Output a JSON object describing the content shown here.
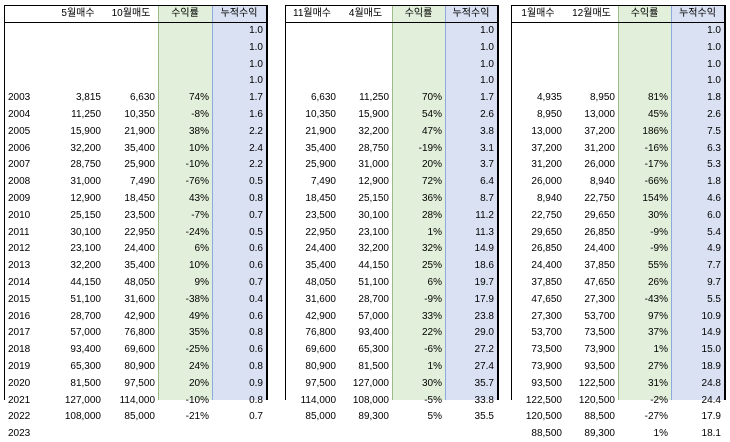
{
  "years": [
    "2003",
    "2004",
    "2005",
    "2006",
    "2007",
    "2008",
    "2009",
    "2010",
    "2011",
    "2012",
    "2013",
    "2014",
    "2015",
    "2016",
    "2017",
    "2018",
    "2019",
    "2020",
    "2021",
    "2022",
    "2023"
  ],
  "tables": [
    {
      "headers": [
        "5월매수",
        "10월매도",
        "수익률",
        "누적수익"
      ],
      "pre_cum": [
        "1.0",
        "1.0",
        "1.0",
        "1.0"
      ],
      "rows": [
        [
          "3,815",
          "6,630",
          "74%",
          "1.7"
        ],
        [
          "11,250",
          "10,350",
          "-8%",
          "1.6"
        ],
        [
          "15,900",
          "21,900",
          "38%",
          "2.2"
        ],
        [
          "32,200",
          "35,400",
          "10%",
          "2.4"
        ],
        [
          "28,750",
          "25,900",
          "-10%",
          "2.2"
        ],
        [
          "31,000",
          "7,490",
          "-76%",
          "0.5"
        ],
        [
          "12,900",
          "18,450",
          "43%",
          "0.8"
        ],
        [
          "25,150",
          "23,500",
          "-7%",
          "0.7"
        ],
        [
          "30,100",
          "22,950",
          "-24%",
          "0.5"
        ],
        [
          "23,100",
          "24,400",
          "6%",
          "0.6"
        ],
        [
          "32,200",
          "35,400",
          "10%",
          "0.6"
        ],
        [
          "44,150",
          "48,050",
          "9%",
          "0.7"
        ],
        [
          "51,100",
          "31,600",
          "-38%",
          "0.4"
        ],
        [
          "28,700",
          "42,900",
          "49%",
          "0.6"
        ],
        [
          "57,000",
          "76,800",
          "35%",
          "0.8"
        ],
        [
          "93,400",
          "69,600",
          "-25%",
          "0.6"
        ],
        [
          "65,300",
          "80,900",
          "24%",
          "0.8"
        ],
        [
          "81,500",
          "97,500",
          "20%",
          "0.9"
        ],
        [
          "127,000",
          "114,000",
          "-10%",
          "0.8"
        ],
        [
          "108,000",
          "85,000",
          "-21%",
          "0.7"
        ],
        [
          "",
          "",
          "",
          ""
        ]
      ]
    },
    {
      "headers": [
        "11월매수",
        "4월매도",
        "수익률",
        "누적수익"
      ],
      "pre_cum": [
        "1.0",
        "1.0",
        "1.0",
        "1.0"
      ],
      "rows": [
        [
          "6,630",
          "11,250",
          "70%",
          "1.7"
        ],
        [
          "10,350",
          "15,900",
          "54%",
          "2.6"
        ],
        [
          "21,900",
          "32,200",
          "47%",
          "3.8"
        ],
        [
          "35,400",
          "28,750",
          "-19%",
          "3.1"
        ],
        [
          "25,900",
          "31,000",
          "20%",
          "3.7"
        ],
        [
          "7,490",
          "12,900",
          "72%",
          "6.4"
        ],
        [
          "18,450",
          "25,150",
          "36%",
          "8.7"
        ],
        [
          "23,500",
          "30,100",
          "28%",
          "11.2"
        ],
        [
          "22,950",
          "23,100",
          "1%",
          "11.3"
        ],
        [
          "24,400",
          "32,200",
          "32%",
          "14.9"
        ],
        [
          "35,400",
          "44,150",
          "25%",
          "18.6"
        ],
        [
          "48,050",
          "51,100",
          "6%",
          "19.7"
        ],
        [
          "31,600",
          "28,700",
          "-9%",
          "17.9"
        ],
        [
          "42,900",
          "57,000",
          "33%",
          "23.8"
        ],
        [
          "76,800",
          "93,400",
          "22%",
          "29.0"
        ],
        [
          "69,600",
          "65,300",
          "-6%",
          "27.2"
        ],
        [
          "80,900",
          "81,500",
          "1%",
          "27.4"
        ],
        [
          "97,500",
          "127,000",
          "30%",
          "35.7"
        ],
        [
          "114,000",
          "108,000",
          "-5%",
          "33.8"
        ],
        [
          "85,000",
          "89,300",
          "5%",
          "35.5"
        ],
        [
          "",
          "",
          "",
          ""
        ]
      ]
    },
    {
      "headers": [
        "1월매수",
        "12월매도",
        "수익률",
        "누적수익"
      ],
      "pre_cum": [
        "1.0",
        "1.0",
        "1.0",
        "1.0"
      ],
      "rows": [
        [
          "4,935",
          "8,950",
          "81%",
          "1.8"
        ],
        [
          "8,950",
          "13,000",
          "45%",
          "2.6"
        ],
        [
          "13,000",
          "37,200",
          "186%",
          "7.5"
        ],
        [
          "37,200",
          "31,200",
          "-16%",
          "6.3"
        ],
        [
          "31,200",
          "26,000",
          "-17%",
          "5.3"
        ],
        [
          "26,000",
          "8,940",
          "-66%",
          "1.8"
        ],
        [
          "8,940",
          "22,750",
          "154%",
          "4.6"
        ],
        [
          "22,750",
          "29,650",
          "30%",
          "6.0"
        ],
        [
          "29,650",
          "26,850",
          "-9%",
          "5.4"
        ],
        [
          "26,850",
          "24,400",
          "-9%",
          "4.9"
        ],
        [
          "24,400",
          "37,850",
          "55%",
          "7.7"
        ],
        [
          "37,850",
          "47,650",
          "26%",
          "9.7"
        ],
        [
          "47,650",
          "27,300",
          "-43%",
          "5.5"
        ],
        [
          "27,300",
          "53,700",
          "97%",
          "10.9"
        ],
        [
          "53,700",
          "73,500",
          "37%",
          "14.9"
        ],
        [
          "73,500",
          "73,900",
          "1%",
          "15.0"
        ],
        [
          "73,900",
          "93,500",
          "27%",
          "18.9"
        ],
        [
          "93,500",
          "122,500",
          "31%",
          "24.8"
        ],
        [
          "122,500",
          "120,500",
          "-2%",
          "24.4"
        ],
        [
          "120,500",
          "88,500",
          "-27%",
          "17.9"
        ],
        [
          "88,500",
          "89,300",
          "1%",
          "18.1"
        ]
      ]
    }
  ]
}
